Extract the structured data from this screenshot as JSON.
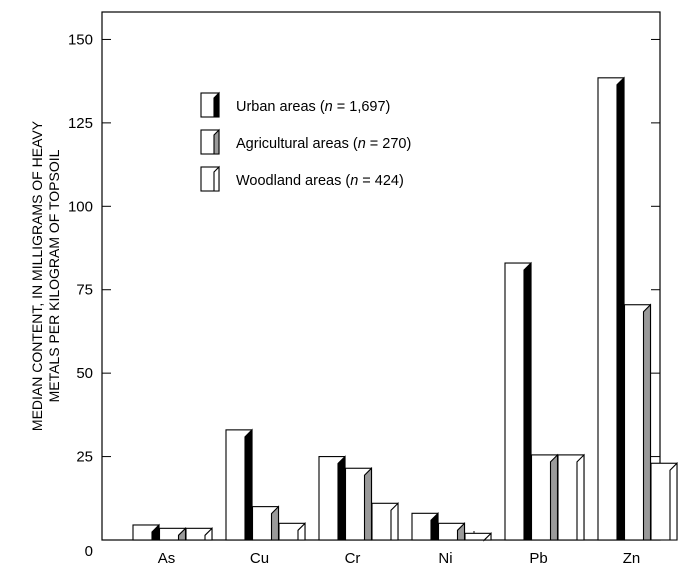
{
  "chart_data": {
    "type": "bar",
    "categories": [
      "As",
      "Cu",
      "Cr",
      "Ni",
      "Pb",
      "Zn"
    ],
    "series": [
      {
        "name_prefix": "Urban areas (",
        "name_n": "n",
        "name_suffix": " = 1,697)",
        "values": [
          4.5,
          33,
          25,
          8,
          83,
          138.5
        ],
        "edge_color": "#000000"
      },
      {
        "name_prefix": "Agricultural areas (",
        "name_n": "n",
        "name_suffix": " = 270)",
        "values": [
          3.5,
          10,
          21.5,
          5,
          25.5,
          70.5
        ],
        "edge_color": "#9a9a9a"
      },
      {
        "name_prefix": "Woodland areas (",
        "name_n": "n",
        "name_suffix": " = 424)",
        "values": [
          3.5,
          5,
          11,
          2,
          25.5,
          23
        ],
        "edge_color": "#ffffff"
      }
    ],
    "ylabel_line1": "MEDIAN CONTENT, IN MILLIGRAMS OF HEAVY",
    "ylabel_line2": "METALS PER KILOGRAM OF TOPSOIL",
    "ylim": [
      0,
      160
    ],
    "yticks": [
      0,
      25,
      50,
      75,
      100,
      125,
      150
    ],
    "legend_position": "top-left",
    "grid": false
  }
}
